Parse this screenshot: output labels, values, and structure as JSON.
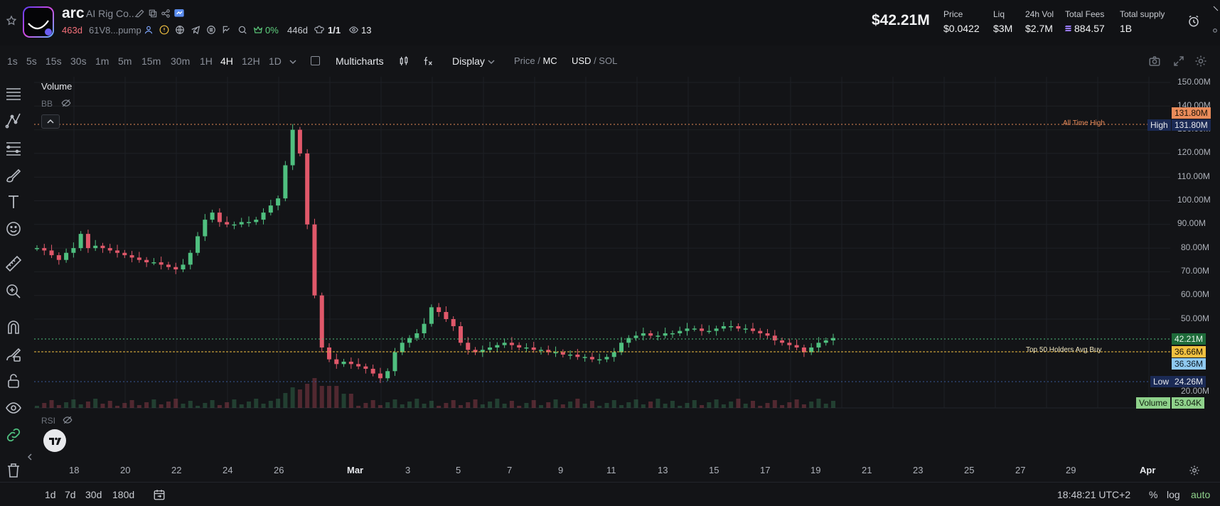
{
  "header": {
    "name": "arc",
    "full_name": "AI Rig Co...",
    "age": "463d",
    "address": "61V8...pump",
    "holders_pct": "0%",
    "holders_age": "446d",
    "dev_ratio": "1/1",
    "watchers": "13",
    "market_cap": "$42.21M",
    "stats": [
      {
        "label": "Price",
        "value": "$0.0422"
      },
      {
        "label": "Liq",
        "value": "$3M"
      },
      {
        "label": "24h Vol",
        "value": "$2.7M"
      },
      {
        "label": "Total Fees",
        "value": "884.57"
      },
      {
        "label": "Total supply",
        "value": "1B"
      }
    ]
  },
  "toolbar": {
    "timeframes": [
      "1s",
      "5s",
      "15s",
      "30s",
      "1m",
      "5m",
      "15m",
      "30m",
      "1H",
      "4H",
      "12H",
      "1D"
    ],
    "active_timeframe": "4H",
    "multicharts": "Multicharts",
    "display": "Display",
    "price": "Price",
    "mc": "MC",
    "usd": "USD",
    "sol": "SOL"
  },
  "legend": {
    "volume": "Volume",
    "bb": "BB",
    "rsi": "RSI"
  },
  "price_axis": [
    "150.00M",
    "140.00M",
    "130.00M",
    "120.00M",
    "110.00M",
    "100.00M",
    "90.00M",
    "80.00M",
    "70.00M",
    "60.00M",
    "50.00M",
    "20.00M"
  ],
  "tags": {
    "ath_value": "131.80M",
    "high_label": "High",
    "high_value": "131.80M",
    "current": "42.21M",
    "avg_buy": "36.66M",
    "cyan": "36.36M",
    "low_label": "Low",
    "low_value": "24.26M",
    "volume_label": "Volume",
    "volume_value": "53.04K",
    "ath_text": "All Time High",
    "avg_text": "Top 50 Holders Avg Buy"
  },
  "date_axis": [
    "18",
    "20",
    "22",
    "24",
    "26",
    "Mar",
    "3",
    "5",
    "7",
    "9",
    "11",
    "13",
    "15",
    "17",
    "19",
    "21",
    "23",
    "25",
    "27",
    "29",
    "Apr"
  ],
  "bottom": {
    "ranges": [
      "1d",
      "7d",
      "30d",
      "180d"
    ],
    "clock": "18:48:21 UTC+2",
    "pct": "%",
    "log": "log",
    "auto": "auto"
  },
  "colors": {
    "up": "#4fbf7f",
    "down": "#e0586a",
    "accent_green": "#8fd18b",
    "ath_orange": "#e98b5a",
    "avg_yellow": "#f0c040"
  }
}
